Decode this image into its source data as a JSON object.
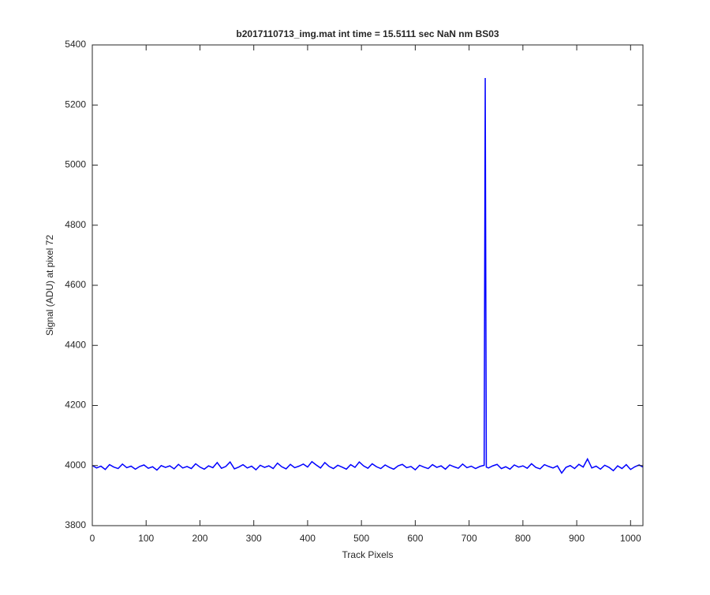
{
  "chart_data": {
    "type": "line",
    "title": "b2017110713_img.mat int time = 15.5111 sec  NaN nm BS03",
    "xlabel": "Track Pixels",
    "ylabel": "Signal (ADU) at pixel 72",
    "color": "#0000ff",
    "xlim": [
      0,
      1023
    ],
    "ylim": [
      3800,
      5400
    ],
    "xticks": [
      0,
      100,
      200,
      300,
      400,
      500,
      600,
      700,
      800,
      900,
      1000
    ],
    "yticks": [
      3800,
      4000,
      4200,
      4400,
      4600,
      4800,
      5000,
      5200,
      5400
    ],
    "x": [
      0,
      8,
      16,
      24,
      32,
      40,
      48,
      56,
      64,
      72,
      80,
      88,
      96,
      104,
      112,
      120,
      128,
      136,
      144,
      152,
      160,
      168,
      176,
      184,
      192,
      200,
      208,
      216,
      224,
      232,
      240,
      248,
      256,
      264,
      272,
      280,
      288,
      296,
      304,
      312,
      320,
      328,
      336,
      344,
      352,
      360,
      368,
      376,
      384,
      392,
      400,
      408,
      416,
      424,
      432,
      440,
      448,
      456,
      464,
      472,
      480,
      488,
      496,
      504,
      512,
      520,
      528,
      536,
      544,
      552,
      560,
      568,
      576,
      584,
      592,
      600,
      608,
      616,
      624,
      632,
      640,
      648,
      656,
      664,
      672,
      680,
      688,
      696,
      704,
      712,
      720,
      728,
      730,
      732,
      736,
      744,
      752,
      760,
      768,
      776,
      784,
      792,
      800,
      808,
      816,
      824,
      832,
      840,
      848,
      856,
      864,
      872,
      880,
      888,
      896,
      904,
      912,
      920,
      928,
      936,
      944,
      952,
      960,
      968,
      976,
      984,
      992,
      1000,
      1008,
      1016,
      1023
    ],
    "values": [
      4000,
      3992,
      3998,
      3987,
      4003,
      3995,
      3990,
      4005,
      3993,
      3998,
      3988,
      3997,
      4002,
      3991,
      3996,
      3985,
      4000,
      3994,
      3999,
      3989,
      4004,
      3992,
      3997,
      3990,
      4006,
      3995,
      3988,
      3999,
      3993,
      4010,
      3991,
      3997,
      4012,
      3989,
      3995,
      4003,
      3992,
      3998,
      3986,
      4001,
      3994,
      3999,
      3990,
      4008,
      3996,
      3989,
      4004,
      3993,
      3998,
      4005,
      3995,
      4013,
      4002,
      3992,
      4010,
      3997,
      3990,
      4001,
      3995,
      3988,
      4003,
      3994,
      4012,
      3999,
      3991,
      4006,
      3996,
      3990,
      4002,
      3994,
      3988,
      3999,
      4004,
      3993,
      3997,
      3986,
      4001,
      3995,
      3990,
      4003,
      3994,
      3999,
      3988,
      4002,
      3996,
      3991,
      4005,
      3993,
      3998,
      3990,
      3997,
      4001,
      5290,
      3995,
      3992,
      3999,
      4004,
      3990,
      3996,
      3988,
      4002,
      3995,
      3999,
      3991,
      4006,
      3994,
      3989,
      4003,
      3997,
      3992,
      3999,
      3975,
      3994,
      4000,
      3990,
      4004,
      3995,
      4022,
      3992,
      3998,
      3988,
      4001,
      3994,
      3983,
      3999,
      3990,
      4003,
      3987,
      3996,
      4002,
      3995
    ]
  }
}
